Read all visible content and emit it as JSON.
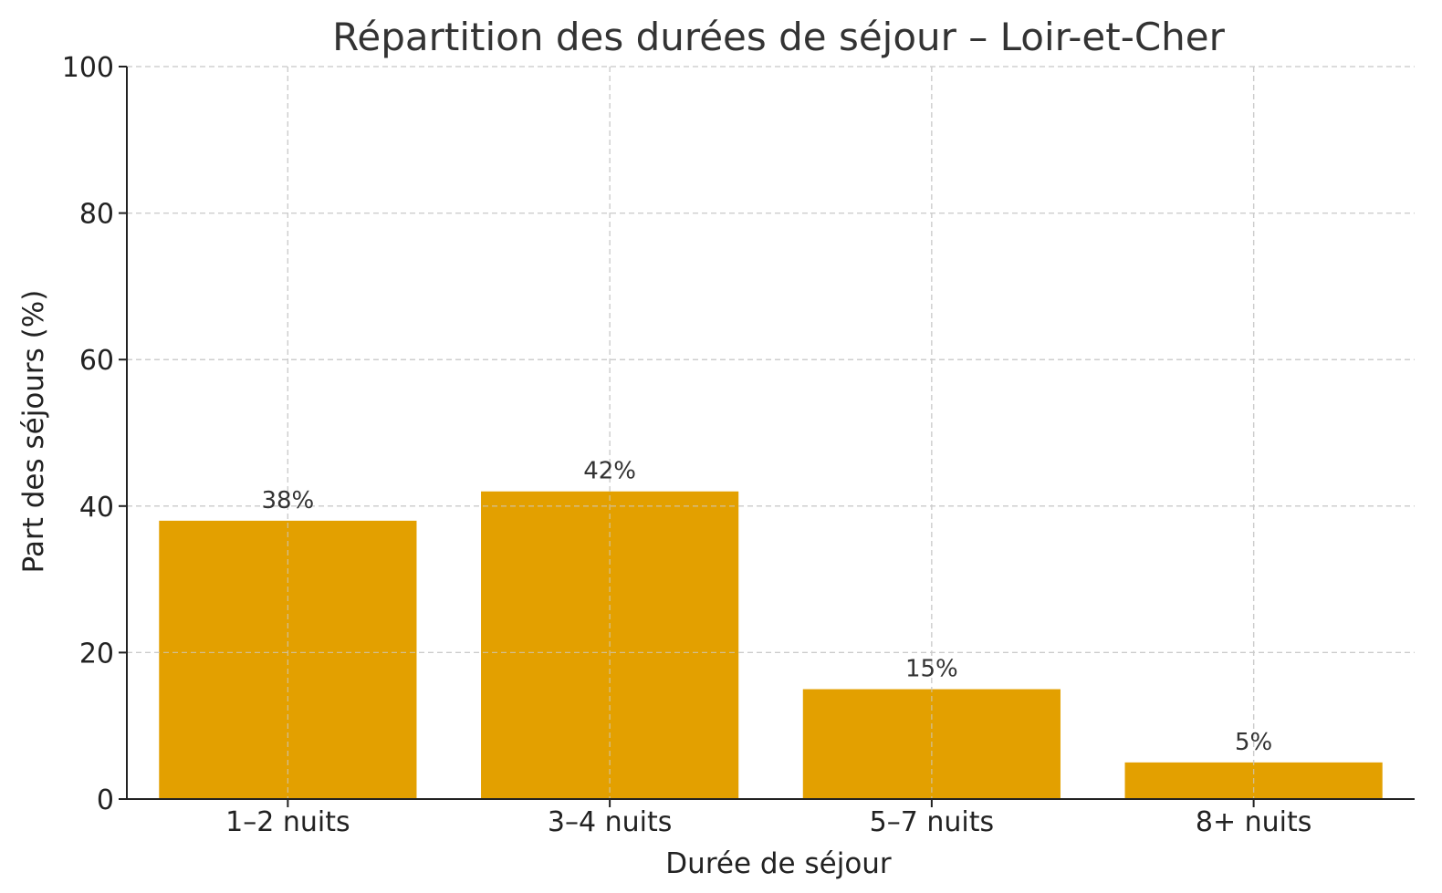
{
  "chart_data": {
    "type": "bar",
    "title": "Répartition des durées de séjour – Loir-et-Cher",
    "xlabel": "Durée de séjour",
    "ylabel": "Part des séjours (%)",
    "categories": [
      "1–2 nuits",
      "3–4 nuits",
      "5–7 nuits",
      "8+ nuits"
    ],
    "values": [
      38,
      42,
      15,
      5
    ],
    "data_labels": [
      "38%",
      "42%",
      "15%",
      "5%"
    ],
    "ylim": [
      0,
      100
    ],
    "yticks": [
      0,
      20,
      40,
      60,
      80,
      100
    ],
    "grid": true,
    "bar_color": "#E3A000"
  }
}
